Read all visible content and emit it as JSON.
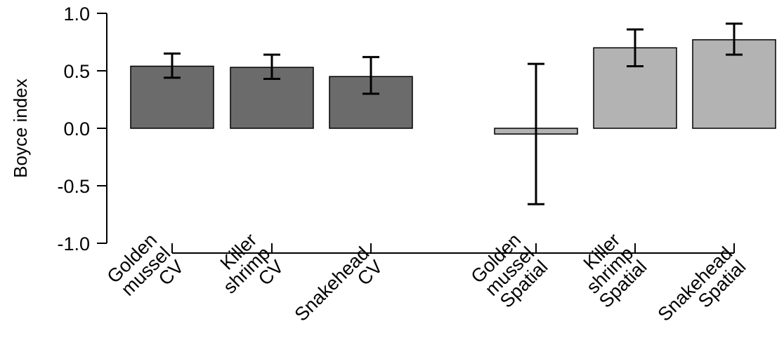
{
  "chart_data": {
    "type": "bar",
    "title": "",
    "xlabel": "",
    "ylabel": "Boyce index",
    "ylim": [
      -1.0,
      1.0
    ],
    "yticks": [
      "-1.0",
      "-0.5",
      "0.0",
      "0.5",
      "1.0"
    ],
    "grid": false,
    "categories": [
      [
        "Golden",
        "mussel",
        "CV"
      ],
      [
        "Killer",
        "shrimp",
        "CV"
      ],
      [
        "Snakehead",
        "CV"
      ],
      [
        "Golden",
        "mussel",
        "Spatial"
      ],
      [
        "Killer",
        "shrimp",
        "Spatial"
      ],
      [
        "Snakehead",
        "Spatial"
      ]
    ],
    "values": [
      0.54,
      0.53,
      0.45,
      -0.05,
      0.7,
      0.77
    ],
    "error_low": [
      0.44,
      0.43,
      0.3,
      -0.66,
      0.54,
      0.64
    ],
    "error_high": [
      0.65,
      0.64,
      0.62,
      0.56,
      0.86,
      0.91
    ],
    "colors": [
      "#6b6b6b",
      "#6b6b6b",
      "#6b6b6b",
      "#b3b3b3",
      "#b3b3b3",
      "#b3b3b3"
    ]
  }
}
